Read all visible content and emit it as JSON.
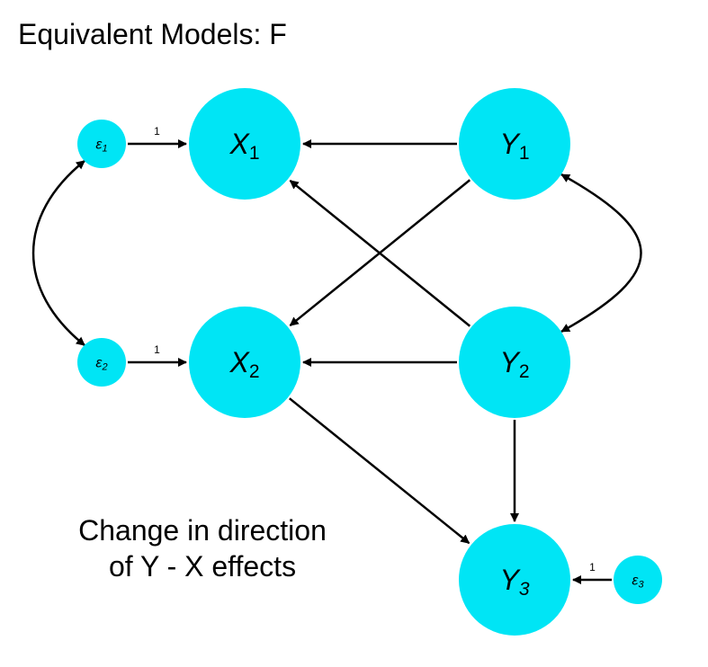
{
  "title": "Equivalent Models: F",
  "caption_lines": [
    "Change in direction",
    "of Y - X effects"
  ],
  "colors": {
    "node_fill": "#00E5F5",
    "edge": "#000000"
  },
  "nodes": [
    {
      "id": "X1",
      "letter": "X",
      "sub": "1",
      "kind": "latent"
    },
    {
      "id": "X2",
      "letter": "X",
      "sub": "2",
      "kind": "latent"
    },
    {
      "id": "Y1",
      "letter": "Y",
      "sub": "1",
      "kind": "latent"
    },
    {
      "id": "Y2",
      "letter": "Y",
      "sub": "2",
      "kind": "latent"
    },
    {
      "id": "Y3",
      "letter": "Y",
      "sub": "3",
      "kind": "latent"
    },
    {
      "id": "e1",
      "letter": "ε",
      "sub": "1",
      "kind": "error"
    },
    {
      "id": "e2",
      "letter": "ε",
      "sub": "2",
      "kind": "error"
    },
    {
      "id": "e3",
      "letter": "ε",
      "sub": "3",
      "kind": "error"
    }
  ],
  "edges": [
    {
      "from": "e1",
      "to": "X1",
      "label": "1"
    },
    {
      "from": "e2",
      "to": "X2",
      "label": "1"
    },
    {
      "from": "e3",
      "to": "Y3",
      "label": "1"
    },
    {
      "from": "Y1",
      "to": "X1",
      "label": ""
    },
    {
      "from": "Y1",
      "to": "X2",
      "label": ""
    },
    {
      "from": "Y2",
      "to": "X1",
      "label": ""
    },
    {
      "from": "Y2",
      "to": "X2",
      "label": ""
    },
    {
      "from": "Y2",
      "to": "Y3",
      "label": ""
    },
    {
      "from": "X2",
      "to": "Y3",
      "label": ""
    }
  ],
  "covariances": [
    {
      "between": [
        "e1",
        "e2"
      ]
    },
    {
      "between": [
        "Y1",
        "Y2"
      ]
    }
  ]
}
